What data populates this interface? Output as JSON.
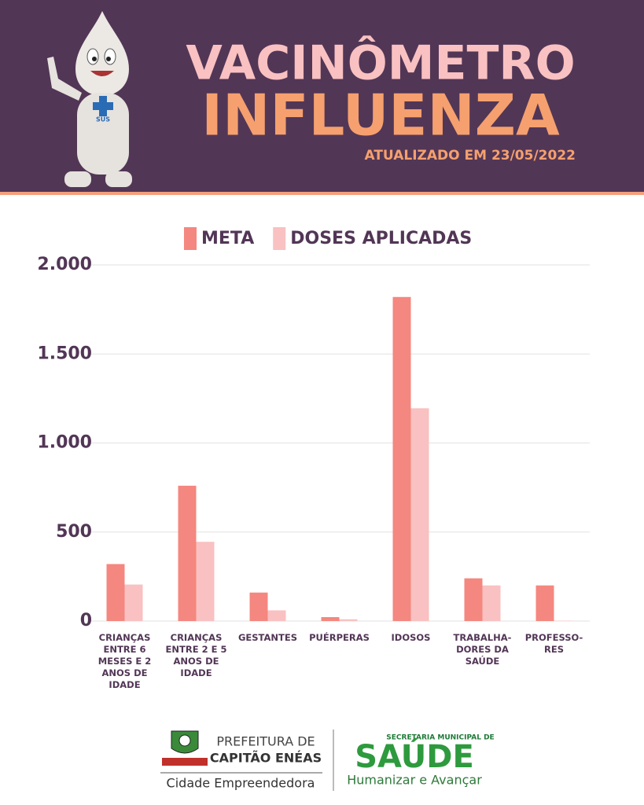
{
  "header": {
    "title": "VACINÔMETRO",
    "subtitle": "INFLUENZA",
    "updated": "ATUALIZADO EM 23/05/2022",
    "badge": "SUS"
  },
  "chart_data": {
    "type": "bar",
    "categories": [
      "CRIANÇAS ENTRE 6 MESES E 2 ANOS DE IDADE",
      "CRIANÇAS ENTRE 2 E 5 ANOS DE IDADE",
      "GESTANTES",
      "PUÉRPERAS",
      "IDOSOS",
      "TRABALHA-DORES DA SAÚDE",
      "PROFESSO-RES"
    ],
    "series": [
      {
        "name": "META",
        "color": "#f4877f",
        "values": [
          320,
          760,
          160,
          22,
          1820,
          240,
          200
        ]
      },
      {
        "name": "DOSES APLICADAS",
        "color": "#f9c1c1",
        "values": [
          205,
          445,
          60,
          10,
          1195,
          200,
          2
        ]
      }
    ],
    "ylim": [
      0,
      2000
    ],
    "yticks": [
      0,
      500,
      {
        "value": 1000,
        "label": "1.000"
      },
      {
        "value": 1500,
        "label": "1.500"
      },
      {
        "value": 2000,
        "label": "2.000"
      }
    ],
    "grid": true,
    "legend": "top"
  },
  "footer": {
    "left_line1": "PREFEITURA DE",
    "left_line2": "CAPITÃO ENÉAS",
    "left_slogan": "Cidade Empreendedora",
    "right_top": "SECRETARIA MUNICIPAL DE",
    "right_title": "SAÚDE",
    "right_slogan": "Humanizar e Avançar"
  }
}
